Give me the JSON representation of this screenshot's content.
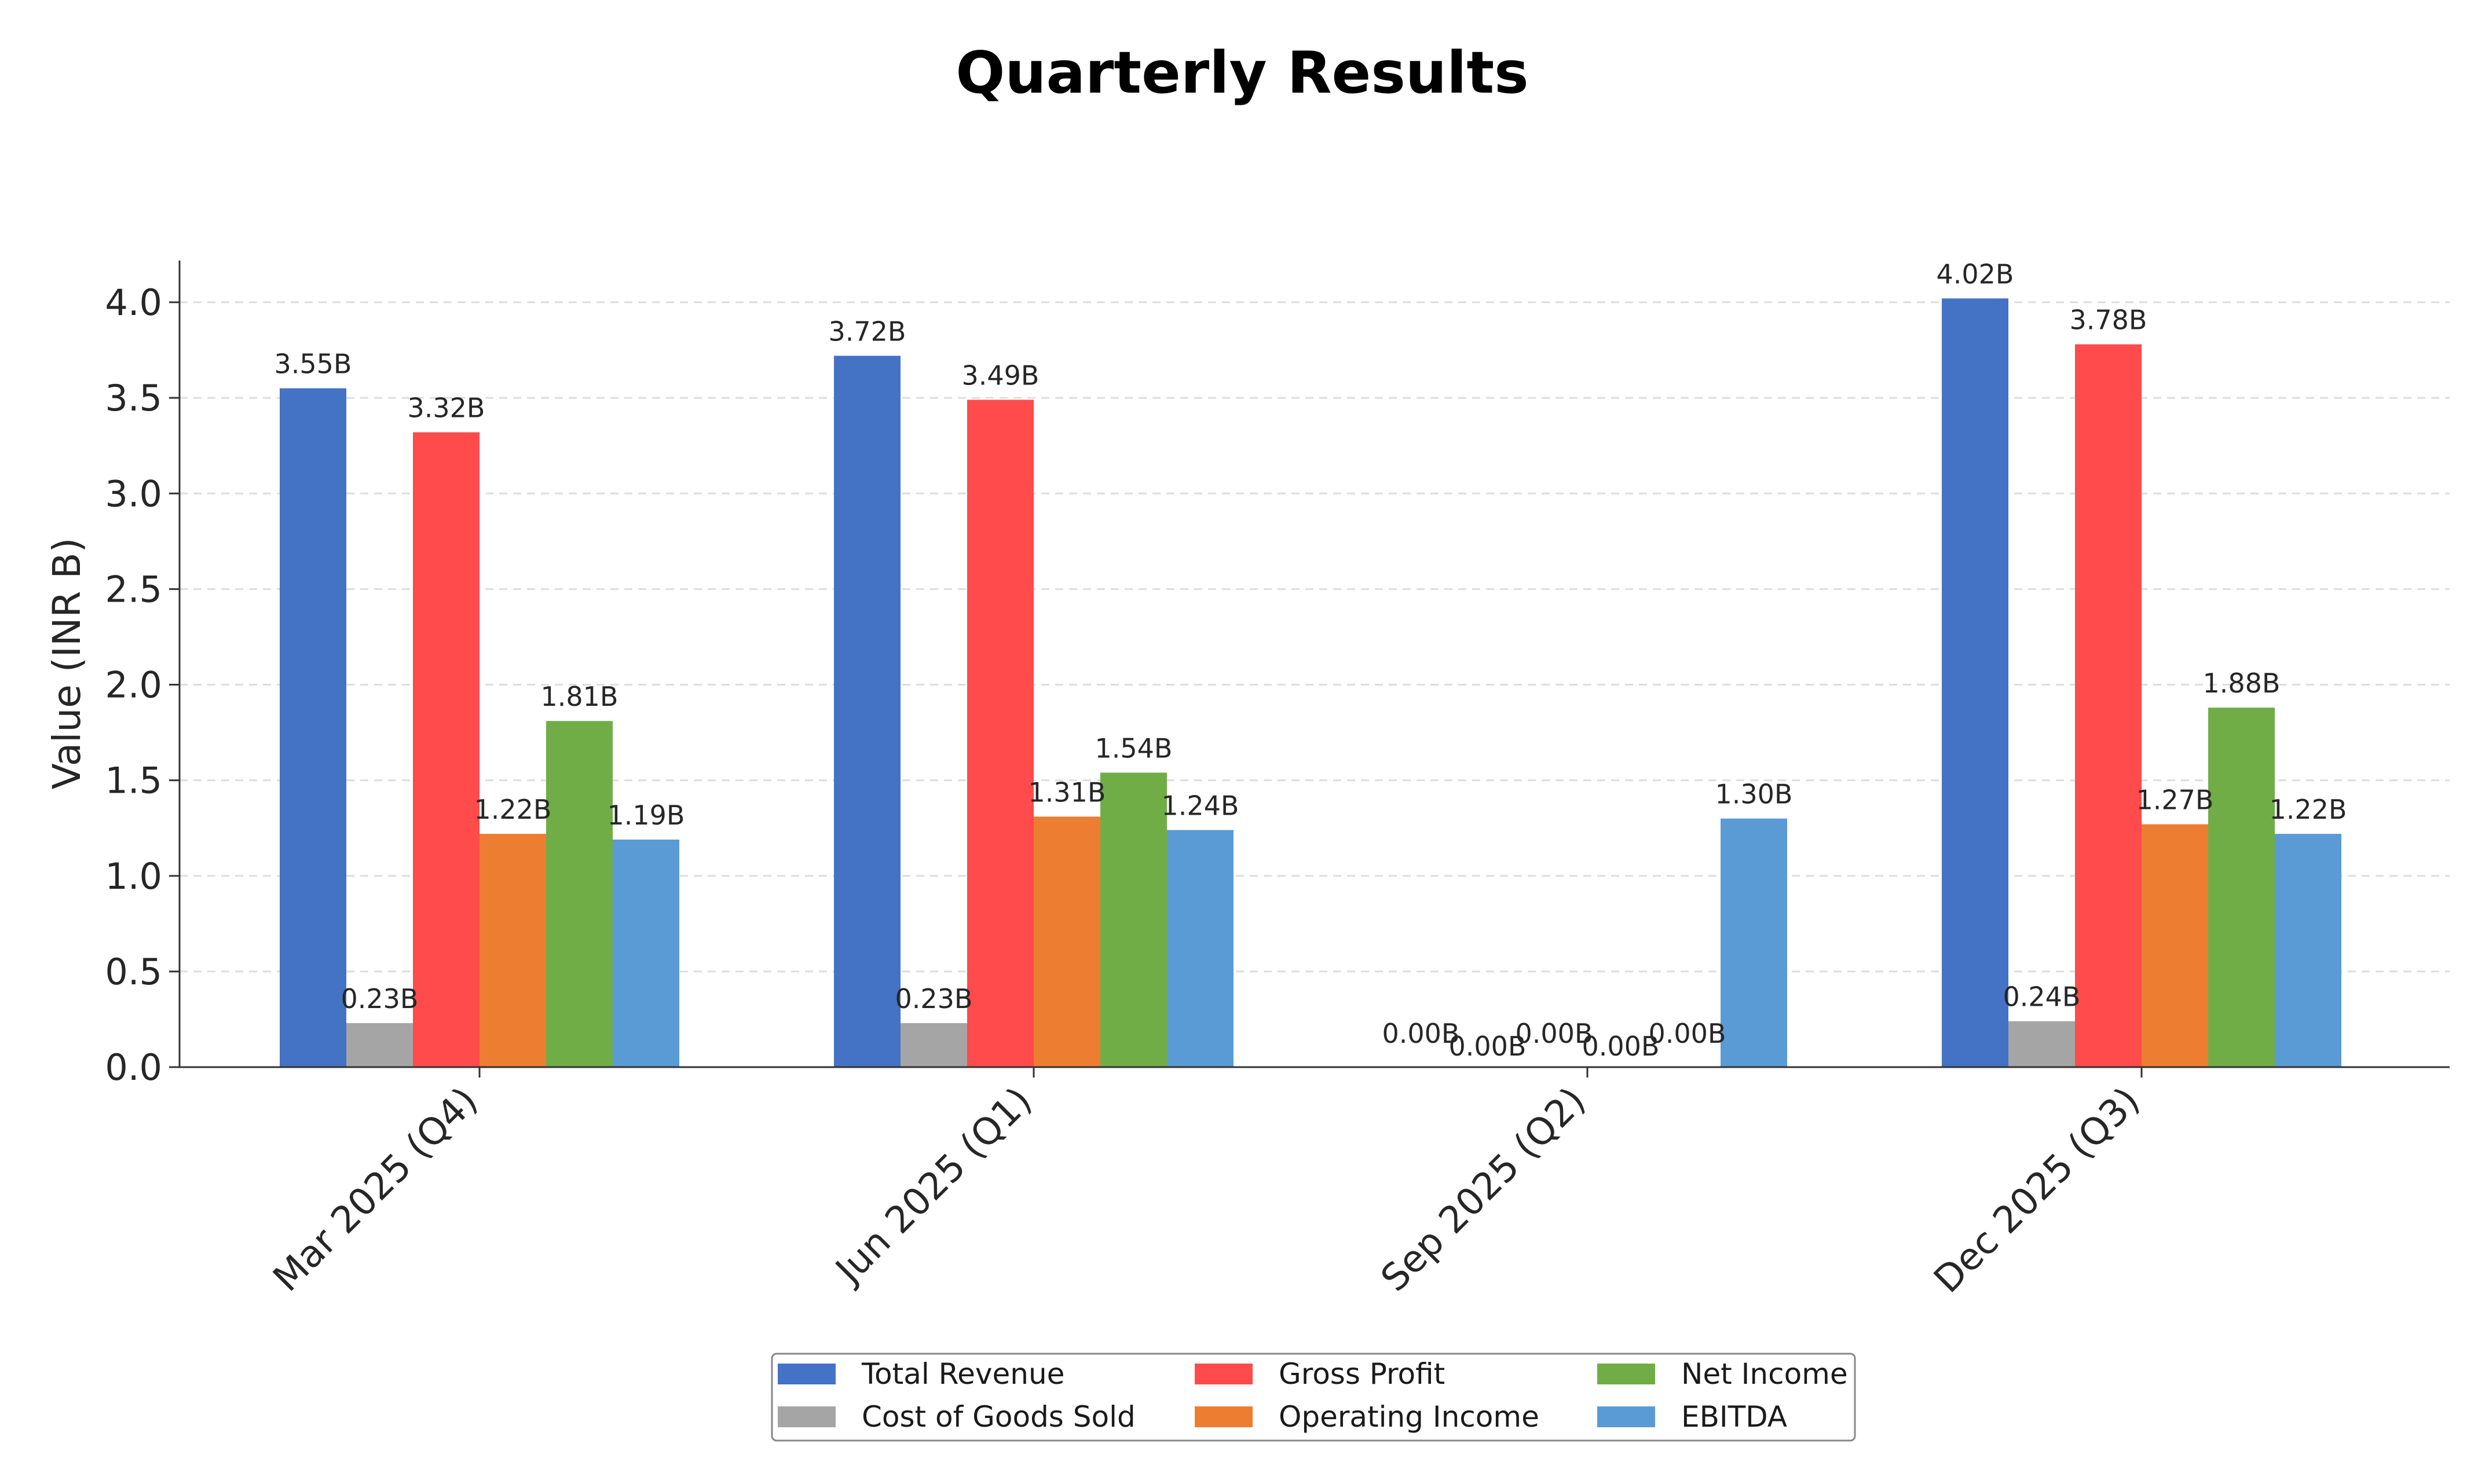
{
  "chart_data": {
    "type": "bar",
    "title": "Quarterly Results",
    "xlabel": "",
    "ylabel": "Value (INR B)",
    "ylim": [
      0,
      4.2
    ],
    "yticks": [
      "0.0",
      "0.5",
      "1.0",
      "1.5",
      "2.0",
      "2.5",
      "3.0",
      "3.5",
      "4.0"
    ],
    "grid": "y-dashed",
    "legend_position": "bottom-center",
    "categories": [
      "Mar 2025 (Q4)",
      "Jun 2025 (Q1)",
      "Sep 2025 (Q2)",
      "Dec 2025 (Q3)"
    ],
    "series": [
      {
        "name": "Total Revenue",
        "color": "#4472C4",
        "values": [
          3.55,
          3.72,
          0.0,
          4.02
        ],
        "labels": [
          "3.55B",
          "3.72B",
          "0.00B",
          "4.02B"
        ]
      },
      {
        "name": "Cost of Goods Sold",
        "color": "#A5A5A5",
        "values": [
          0.23,
          0.23,
          0.0,
          0.24
        ],
        "labels": [
          "0.23B",
          "0.23B",
          "0.00B",
          "0.24B"
        ]
      },
      {
        "name": "Gross Profit",
        "color": "#FF4B4B",
        "values": [
          3.32,
          3.49,
          0.0,
          3.78
        ],
        "labels": [
          "3.32B",
          "3.49B",
          "0.00B",
          "3.78B"
        ]
      },
      {
        "name": "Operating Income",
        "color": "#ED7D31",
        "values": [
          1.22,
          1.31,
          0.0,
          1.27
        ],
        "labels": [
          "1.22B",
          "1.31B",
          "0.00B",
          "1.27B"
        ]
      },
      {
        "name": "Net Income",
        "color": "#70AD47",
        "values": [
          1.81,
          1.54,
          0.0,
          1.88
        ],
        "labels": [
          "1.81B",
          "1.54B",
          "0.00B",
          "1.88B"
        ]
      },
      {
        "name": "EBITDA",
        "color": "#5B9BD5",
        "values": [
          1.19,
          1.24,
          1.3,
          1.22
        ],
        "labels": [
          "1.19B",
          "1.24B",
          "1.30B",
          "1.22B"
        ]
      }
    ]
  }
}
